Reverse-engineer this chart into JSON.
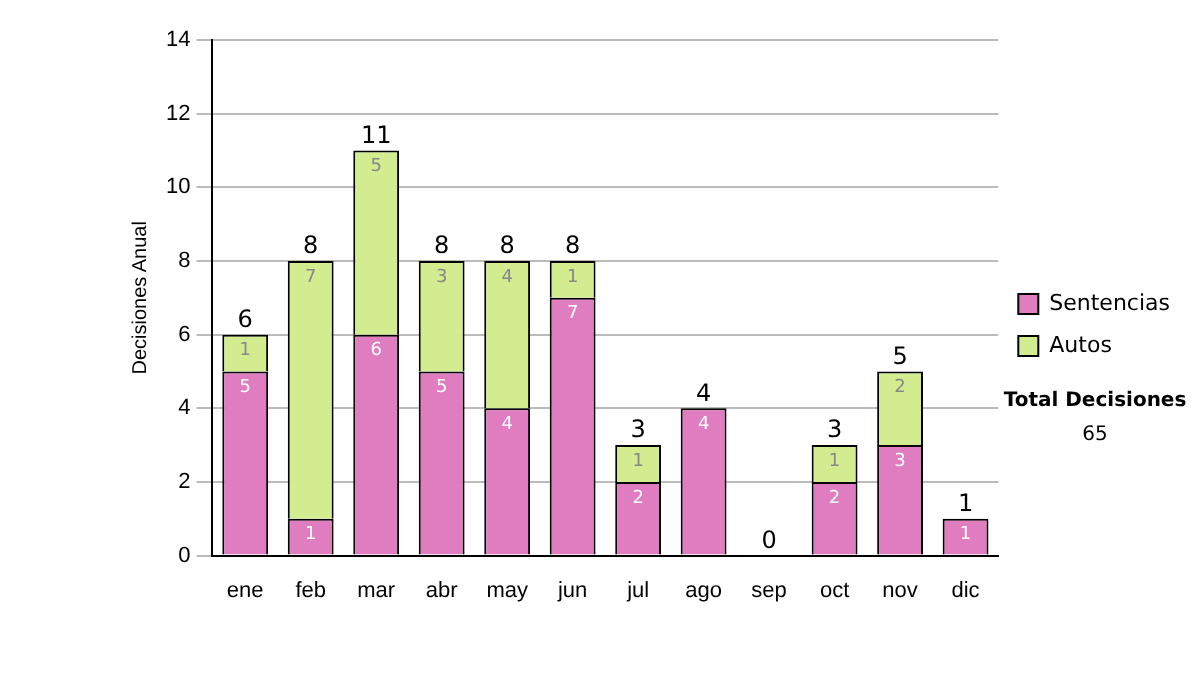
{
  "chart_data": {
    "type": "bar",
    "stacked": true,
    "ylabel": "Decisiones Anual",
    "categories": [
      "ene",
      "feb",
      "mar",
      "abr",
      "may",
      "jun",
      "jul",
      "ago",
      "sep",
      "oct",
      "nov",
      "dic"
    ],
    "series": [
      {
        "name": "Sentencias",
        "color": "#e07cc0",
        "values": [
          5,
          1,
          6,
          5,
          4,
          7,
          2,
          4,
          0,
          2,
          3,
          1
        ],
        "value_labels": [
          "5",
          "1",
          "6",
          "5",
          "4",
          "7",
          "2",
          "4",
          null,
          "2",
          "3",
          "1"
        ]
      },
      {
        "name": "Autos",
        "color": "#d4ec90",
        "values": [
          1,
          7,
          5,
          3,
          4,
          1,
          1,
          0,
          0,
          1,
          2,
          0
        ],
        "value_labels": [
          "1",
          "7",
          "5",
          "3",
          "4",
          "1",
          "1",
          null,
          null,
          "1",
          "2",
          null
        ]
      }
    ],
    "totals": [
      "6",
      "8",
      "11",
      "8",
      "8",
      "8",
      "3",
      "4",
      "0",
      "3",
      "5",
      "1"
    ],
    "ylim": [
      0,
      14
    ],
    "yticks": [
      0,
      2,
      4,
      6,
      8,
      10,
      12,
      14
    ],
    "grid": "y",
    "legend": "right",
    "annotations": [
      "Total Decisiones",
      "65"
    ]
  }
}
